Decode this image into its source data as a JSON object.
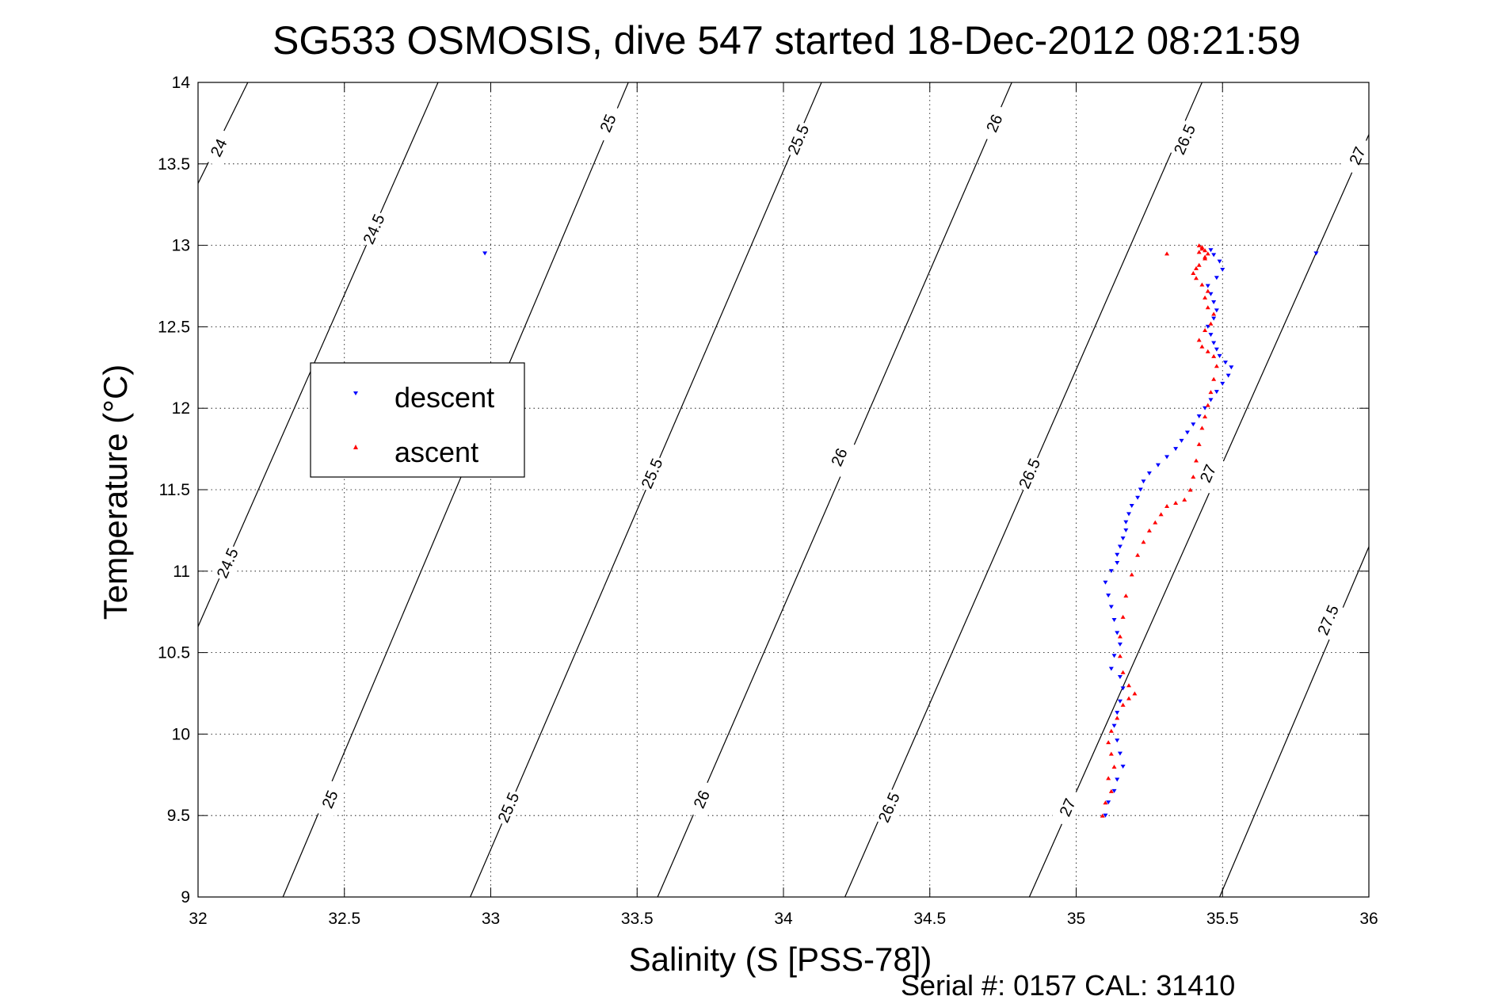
{
  "chart_data": {
    "type": "scatter",
    "title": "SG533 OSMOSIS, dive 547 started 18-Dec-2012 08:21:59",
    "xlabel": "Salinity (S [PSS-78])",
    "ylabel": "Temperature (°C)",
    "xlim": [
      32,
      36
    ],
    "ylim": [
      9,
      14
    ],
    "x_ticks": [
      "32",
      "32.5",
      "33",
      "33.5",
      "34",
      "34.5",
      "35",
      "35.5",
      "36"
    ],
    "y_ticks": [
      "9",
      "9.5",
      "10",
      "10.5",
      "11",
      "11.5",
      "12",
      "12.5",
      "13",
      "13.5",
      "14"
    ],
    "grid": true,
    "legend_position": "upper-left",
    "footer": "Serial #: 0157  CAL: 31410",
    "isopycnals": [
      {
        "level": "24",
        "points": [
          [
            32.0,
            13.38
          ],
          [
            32.17,
            14.0
          ]
        ],
        "labels": [
          [
            32.07,
            13.6
          ]
        ]
      },
      {
        "level": "24.5",
        "points": [
          [
            32.0,
            10.66
          ],
          [
            32.82,
            14.0
          ]
        ],
        "labels": [
          [
            32.6,
            13.1
          ],
          [
            32.1,
            11.05
          ]
        ]
      },
      {
        "level": "25",
        "points": [
          [
            32.29,
            9.0
          ],
          [
            33.47,
            14.0
          ]
        ],
        "labels": [
          [
            33.4,
            13.75
          ],
          [
            32.45,
            9.6
          ]
        ]
      },
      {
        "level": "25.5",
        "points": [
          [
            32.93,
            9.0
          ],
          [
            34.13,
            14.0
          ]
        ],
        "labels": [
          [
            34.05,
            13.65
          ],
          [
            33.55,
            11.6
          ],
          [
            33.06,
            9.55
          ]
        ]
      },
      {
        "level": "26",
        "points": [
          [
            33.57,
            9.0
          ],
          [
            34.78,
            14.0
          ]
        ],
        "labels": [
          [
            34.72,
            13.75
          ],
          [
            34.19,
            11.7
          ],
          [
            33.72,
            9.6
          ]
        ]
      },
      {
        "level": "26.5",
        "points": [
          [
            34.21,
            9.0
          ],
          [
            35.43,
            14.0
          ]
        ],
        "labels": [
          [
            35.37,
            13.65
          ],
          [
            34.84,
            11.6
          ],
          [
            34.36,
            9.55
          ]
        ]
      },
      {
        "level": "27",
        "points": [
          [
            34.84,
            9.0
          ],
          [
            36.0,
            13.68
          ]
        ],
        "labels": [
          [
            35.96,
            13.55
          ],
          [
            35.45,
            11.6
          ],
          [
            34.97,
            9.55
          ]
        ]
      },
      {
        "level": "27.5",
        "points": [
          [
            35.49,
            9.0
          ],
          [
            36.0,
            11.15
          ]
        ],
        "labels": [
          [
            35.86,
            10.7
          ]
        ]
      }
    ],
    "series": [
      {
        "name": "descent",
        "color": "#0000ff",
        "marker": "triangle-down",
        "x": [
          32.98,
          35.82,
          35.1,
          35.11,
          35.13,
          35.14,
          35.16,
          35.15,
          35.14,
          35.13,
          35.14,
          35.15,
          35.16,
          35.15,
          35.12,
          35.13,
          35.15,
          35.14,
          35.13,
          35.12,
          35.11,
          35.1,
          35.12,
          35.14,
          35.14,
          35.15,
          35.16,
          35.17,
          35.17,
          35.18,
          35.19,
          35.21,
          35.22,
          35.23,
          35.25,
          35.28,
          35.31,
          35.34,
          35.36,
          35.38,
          35.4,
          35.42,
          35.44,
          35.46,
          35.48,
          35.5,
          35.52,
          35.53,
          35.51,
          35.49,
          35.48,
          35.47,
          35.46,
          35.45,
          35.47,
          35.48,
          35.47,
          35.46,
          35.45,
          35.48,
          35.5,
          35.49,
          35.47,
          35.46
        ],
        "y": [
          12.95,
          12.95,
          9.5,
          9.58,
          9.65,
          9.72,
          9.8,
          9.88,
          9.96,
          10.05,
          10.13,
          10.2,
          10.28,
          10.35,
          10.4,
          10.48,
          10.55,
          10.62,
          10.7,
          10.78,
          10.85,
          10.93,
          11.0,
          11.05,
          11.1,
          11.15,
          11.2,
          11.25,
          11.3,
          11.35,
          11.4,
          11.45,
          11.5,
          11.55,
          11.6,
          11.65,
          11.7,
          11.75,
          11.8,
          11.85,
          11.9,
          11.95,
          12.0,
          12.05,
          12.1,
          12.15,
          12.2,
          12.25,
          12.28,
          12.32,
          12.36,
          12.4,
          12.45,
          12.5,
          12.55,
          12.6,
          12.65,
          12.7,
          12.75,
          12.8,
          12.85,
          12.9,
          12.94,
          12.97
        ]
      },
      {
        "name": "ascent",
        "color": "#ff0000",
        "marker": "triangle-up",
        "x": [
          35.31,
          35.09,
          35.1,
          35.12,
          35.11,
          35.13,
          35.12,
          35.11,
          35.12,
          35.14,
          35.16,
          35.18,
          35.2,
          35.18,
          35.16,
          35.15,
          35.15,
          35.16,
          35.17,
          35.19,
          35.21,
          35.23,
          35.25,
          35.27,
          35.29,
          35.31,
          35.34,
          35.37,
          35.39,
          35.4,
          35.41,
          35.42,
          35.43,
          35.44,
          35.45,
          35.46,
          35.47,
          35.48,
          35.47,
          35.45,
          35.43,
          35.42,
          35.44,
          35.46,
          35.47,
          35.45,
          35.44,
          35.45,
          35.43,
          35.41,
          35.4,
          35.41,
          35.42,
          35.44,
          35.45,
          35.44,
          35.43,
          35.42,
          35.43,
          35.42,
          35.44
        ],
        "y": [
          12.95,
          9.5,
          9.58,
          9.65,
          9.73,
          9.8,
          9.88,
          9.95,
          10.02,
          10.1,
          10.18,
          10.22,
          10.25,
          10.3,
          10.38,
          10.48,
          10.6,
          10.72,
          10.85,
          10.98,
          11.1,
          11.18,
          11.25,
          11.3,
          11.35,
          11.4,
          11.42,
          11.44,
          11.5,
          11.58,
          11.68,
          11.78,
          11.88,
          11.95,
          12.02,
          12.1,
          12.18,
          12.26,
          12.32,
          12.35,
          12.38,
          12.42,
          12.48,
          12.52,
          12.58,
          12.62,
          12.68,
          12.72,
          12.76,
          12.8,
          12.83,
          12.86,
          12.88,
          12.92,
          12.95,
          12.97,
          12.99,
          13.0,
          12.98,
          12.96,
          12.93
        ]
      }
    ]
  }
}
